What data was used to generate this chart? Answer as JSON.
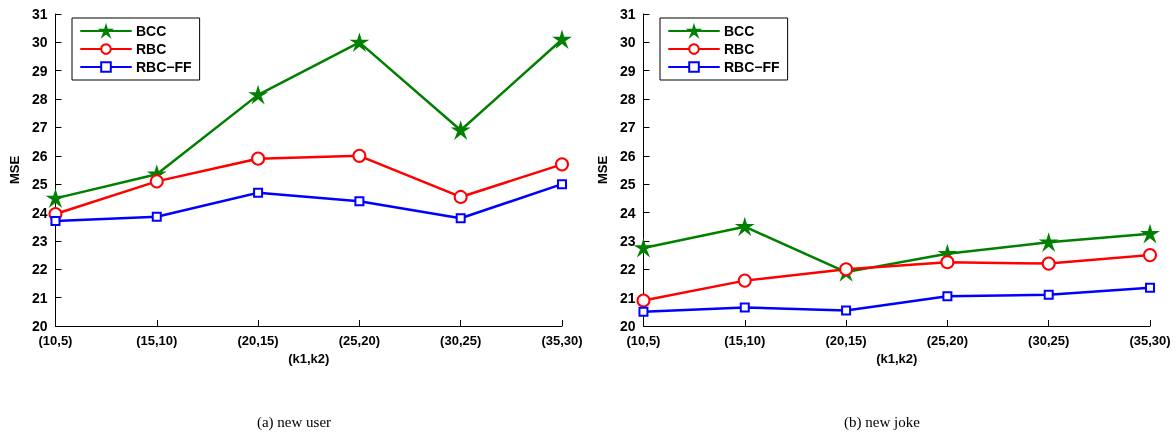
{
  "chart_data": [
    {
      "type": "line",
      "xlabel": "(k1,k2)",
      "ylabel": "MSE",
      "annotations": [
        "(a) new user"
      ],
      "categories": [
        "(10,5)",
        "(15,10)",
        "(20,15)",
        "(25,20)",
        "(30,25)",
        "(35,30)"
      ],
      "ylim": [
        20,
        31
      ],
      "yticks": [
        20,
        21,
        22,
        23,
        24,
        25,
        26,
        27,
        28,
        29,
        30,
        31
      ],
      "grid": false,
      "legend": "top left",
      "series": [
        {
          "name": "BCC",
          "color": "#008000",
          "marker": "star",
          "values": [
            24.5,
            25.35,
            28.15,
            30.0,
            26.9,
            30.1
          ]
        },
        {
          "name": "RBC",
          "color": "#ff0000",
          "marker": "circle",
          "values": [
            23.95,
            25.1,
            25.9,
            26.0,
            24.55,
            25.7
          ]
        },
        {
          "name": "RBC−FF",
          "color": "#0000ff",
          "marker": "square",
          "values": [
            23.7,
            23.85,
            24.7,
            24.4,
            23.8,
            25.0
          ]
        }
      ]
    },
    {
      "type": "line",
      "xlabel": "(k1,k2)",
      "ylabel": "MSE",
      "annotations": [
        "(b) new joke"
      ],
      "categories": [
        "(10,5)",
        "(15,10)",
        "(20,15)",
        "(25,20)",
        "(30,25)",
        "(35,30)"
      ],
      "ylim": [
        20,
        31
      ],
      "yticks": [
        20,
        21,
        22,
        23,
        24,
        25,
        26,
        27,
        28,
        29,
        30,
        31
      ],
      "grid": false,
      "legend": "top left",
      "series": [
        {
          "name": "BCC",
          "color": "#008000",
          "marker": "star",
          "values": [
            22.75,
            23.5,
            21.9,
            22.55,
            22.95,
            23.25
          ]
        },
        {
          "name": "RBC",
          "color": "#ff0000",
          "marker": "circle",
          "values": [
            20.9,
            21.6,
            22.0,
            22.25,
            22.2,
            22.5
          ]
        },
        {
          "name": "RBC−FF",
          "color": "#0000ff",
          "marker": "square",
          "values": [
            20.5,
            20.65,
            20.55,
            21.05,
            21.1,
            21.35
          ]
        }
      ]
    }
  ]
}
